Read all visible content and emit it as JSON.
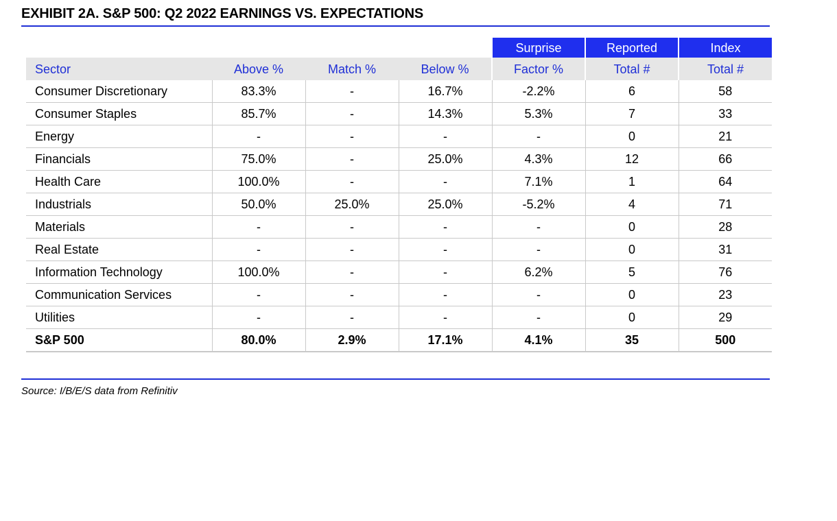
{
  "title": "EXHIBIT 2A.  S&P 500: Q2 2022 EARNINGS VS. EXPECTATIONS",
  "source": "Source: I/B/E/S data from Refinitiv",
  "colors": {
    "header_blue": "#1f2fee",
    "header_text_blue": "#1f2fd6",
    "header_gray": "#e6e6e6",
    "rule_blue": "#1f2fd6"
  },
  "chart_data": {
    "type": "table",
    "header_top": [
      "",
      "",
      "",
      "",
      "Surprise",
      "Reported",
      "Index"
    ],
    "header": [
      "Sector",
      "Above %",
      "Match %",
      "Below %",
      "Factor %",
      "Total #",
      "Total #"
    ],
    "rows": [
      [
        "Consumer Discretionary",
        "83.3%",
        "-",
        "16.7%",
        "-2.2%",
        "6",
        "58"
      ],
      [
        "Consumer Staples",
        "85.7%",
        "-",
        "14.3%",
        "5.3%",
        "7",
        "33"
      ],
      [
        "Energy",
        "-",
        "-",
        "-",
        "-",
        "0",
        "21"
      ],
      [
        "Financials",
        "75.0%",
        "-",
        "25.0%",
        "4.3%",
        "12",
        "66"
      ],
      [
        "Health Care",
        "100.0%",
        "-",
        "-",
        "7.1%",
        "1",
        "64"
      ],
      [
        "Industrials",
        "50.0%",
        "25.0%",
        "25.0%",
        "-5.2%",
        "4",
        "71"
      ],
      [
        "Materials",
        "-",
        "-",
        "-",
        "-",
        "0",
        "28"
      ],
      [
        "Real Estate",
        "-",
        "-",
        "-",
        "-",
        "0",
        "31"
      ],
      [
        "Information Technology",
        "100.0%",
        "-",
        "-",
        "6.2%",
        "5",
        "76"
      ],
      [
        "Communication Services",
        "-",
        "-",
        "-",
        "-",
        "0",
        "23"
      ],
      [
        "Utilities",
        "-",
        "-",
        "-",
        "-",
        "0",
        "29"
      ]
    ],
    "total_row": [
      "S&P 500",
      "80.0%",
      "2.9%",
      "17.1%",
      "4.1%",
      "35",
      "500"
    ]
  }
}
